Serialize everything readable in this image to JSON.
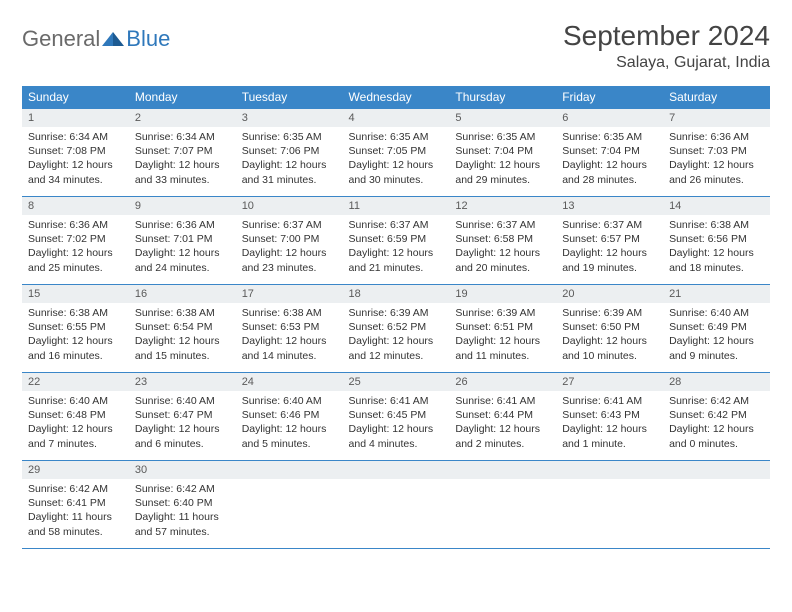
{
  "logo": {
    "text1": "General",
    "text2": "Blue"
  },
  "title": "September 2024",
  "location": "Salaya, Gujarat, India",
  "colors": {
    "header_bg": "#3a86c8",
    "header_text": "#ffffff",
    "daynum_bg": "#eceff1",
    "border": "#3a86c8",
    "text": "#333333",
    "logo_gray": "#6a6a6a",
    "logo_blue": "#2f78bb"
  },
  "weekdays": [
    "Sunday",
    "Monday",
    "Tuesday",
    "Wednesday",
    "Thursday",
    "Friday",
    "Saturday"
  ],
  "weeks": [
    [
      {
        "d": "1",
        "sr": "Sunrise: 6:34 AM",
        "ss": "Sunset: 7:08 PM",
        "dl": "Daylight: 12 hours and 34 minutes."
      },
      {
        "d": "2",
        "sr": "Sunrise: 6:34 AM",
        "ss": "Sunset: 7:07 PM",
        "dl": "Daylight: 12 hours and 33 minutes."
      },
      {
        "d": "3",
        "sr": "Sunrise: 6:35 AM",
        "ss": "Sunset: 7:06 PM",
        "dl": "Daylight: 12 hours and 31 minutes."
      },
      {
        "d": "4",
        "sr": "Sunrise: 6:35 AM",
        "ss": "Sunset: 7:05 PM",
        "dl": "Daylight: 12 hours and 30 minutes."
      },
      {
        "d": "5",
        "sr": "Sunrise: 6:35 AM",
        "ss": "Sunset: 7:04 PM",
        "dl": "Daylight: 12 hours and 29 minutes."
      },
      {
        "d": "6",
        "sr": "Sunrise: 6:35 AM",
        "ss": "Sunset: 7:04 PM",
        "dl": "Daylight: 12 hours and 28 minutes."
      },
      {
        "d": "7",
        "sr": "Sunrise: 6:36 AM",
        "ss": "Sunset: 7:03 PM",
        "dl": "Daylight: 12 hours and 26 minutes."
      }
    ],
    [
      {
        "d": "8",
        "sr": "Sunrise: 6:36 AM",
        "ss": "Sunset: 7:02 PM",
        "dl": "Daylight: 12 hours and 25 minutes."
      },
      {
        "d": "9",
        "sr": "Sunrise: 6:36 AM",
        "ss": "Sunset: 7:01 PM",
        "dl": "Daylight: 12 hours and 24 minutes."
      },
      {
        "d": "10",
        "sr": "Sunrise: 6:37 AM",
        "ss": "Sunset: 7:00 PM",
        "dl": "Daylight: 12 hours and 23 minutes."
      },
      {
        "d": "11",
        "sr": "Sunrise: 6:37 AM",
        "ss": "Sunset: 6:59 PM",
        "dl": "Daylight: 12 hours and 21 minutes."
      },
      {
        "d": "12",
        "sr": "Sunrise: 6:37 AM",
        "ss": "Sunset: 6:58 PM",
        "dl": "Daylight: 12 hours and 20 minutes."
      },
      {
        "d": "13",
        "sr": "Sunrise: 6:37 AM",
        "ss": "Sunset: 6:57 PM",
        "dl": "Daylight: 12 hours and 19 minutes."
      },
      {
        "d": "14",
        "sr": "Sunrise: 6:38 AM",
        "ss": "Sunset: 6:56 PM",
        "dl": "Daylight: 12 hours and 18 minutes."
      }
    ],
    [
      {
        "d": "15",
        "sr": "Sunrise: 6:38 AM",
        "ss": "Sunset: 6:55 PM",
        "dl": "Daylight: 12 hours and 16 minutes."
      },
      {
        "d": "16",
        "sr": "Sunrise: 6:38 AM",
        "ss": "Sunset: 6:54 PM",
        "dl": "Daylight: 12 hours and 15 minutes."
      },
      {
        "d": "17",
        "sr": "Sunrise: 6:38 AM",
        "ss": "Sunset: 6:53 PM",
        "dl": "Daylight: 12 hours and 14 minutes."
      },
      {
        "d": "18",
        "sr": "Sunrise: 6:39 AM",
        "ss": "Sunset: 6:52 PM",
        "dl": "Daylight: 12 hours and 12 minutes."
      },
      {
        "d": "19",
        "sr": "Sunrise: 6:39 AM",
        "ss": "Sunset: 6:51 PM",
        "dl": "Daylight: 12 hours and 11 minutes."
      },
      {
        "d": "20",
        "sr": "Sunrise: 6:39 AM",
        "ss": "Sunset: 6:50 PM",
        "dl": "Daylight: 12 hours and 10 minutes."
      },
      {
        "d": "21",
        "sr": "Sunrise: 6:40 AM",
        "ss": "Sunset: 6:49 PM",
        "dl": "Daylight: 12 hours and 9 minutes."
      }
    ],
    [
      {
        "d": "22",
        "sr": "Sunrise: 6:40 AM",
        "ss": "Sunset: 6:48 PM",
        "dl": "Daylight: 12 hours and 7 minutes."
      },
      {
        "d": "23",
        "sr": "Sunrise: 6:40 AM",
        "ss": "Sunset: 6:47 PM",
        "dl": "Daylight: 12 hours and 6 minutes."
      },
      {
        "d": "24",
        "sr": "Sunrise: 6:40 AM",
        "ss": "Sunset: 6:46 PM",
        "dl": "Daylight: 12 hours and 5 minutes."
      },
      {
        "d": "25",
        "sr": "Sunrise: 6:41 AM",
        "ss": "Sunset: 6:45 PM",
        "dl": "Daylight: 12 hours and 4 minutes."
      },
      {
        "d": "26",
        "sr": "Sunrise: 6:41 AM",
        "ss": "Sunset: 6:44 PM",
        "dl": "Daylight: 12 hours and 2 minutes."
      },
      {
        "d": "27",
        "sr": "Sunrise: 6:41 AM",
        "ss": "Sunset: 6:43 PM",
        "dl": "Daylight: 12 hours and 1 minute."
      },
      {
        "d": "28",
        "sr": "Sunrise: 6:42 AM",
        "ss": "Sunset: 6:42 PM",
        "dl": "Daylight: 12 hours and 0 minutes."
      }
    ],
    [
      {
        "d": "29",
        "sr": "Sunrise: 6:42 AM",
        "ss": "Sunset: 6:41 PM",
        "dl": "Daylight: 11 hours and 58 minutes."
      },
      {
        "d": "30",
        "sr": "Sunrise: 6:42 AM",
        "ss": "Sunset: 6:40 PM",
        "dl": "Daylight: 11 hours and 57 minutes."
      },
      {
        "empty": true
      },
      {
        "empty": true
      },
      {
        "empty": true
      },
      {
        "empty": true
      },
      {
        "empty": true
      }
    ]
  ]
}
